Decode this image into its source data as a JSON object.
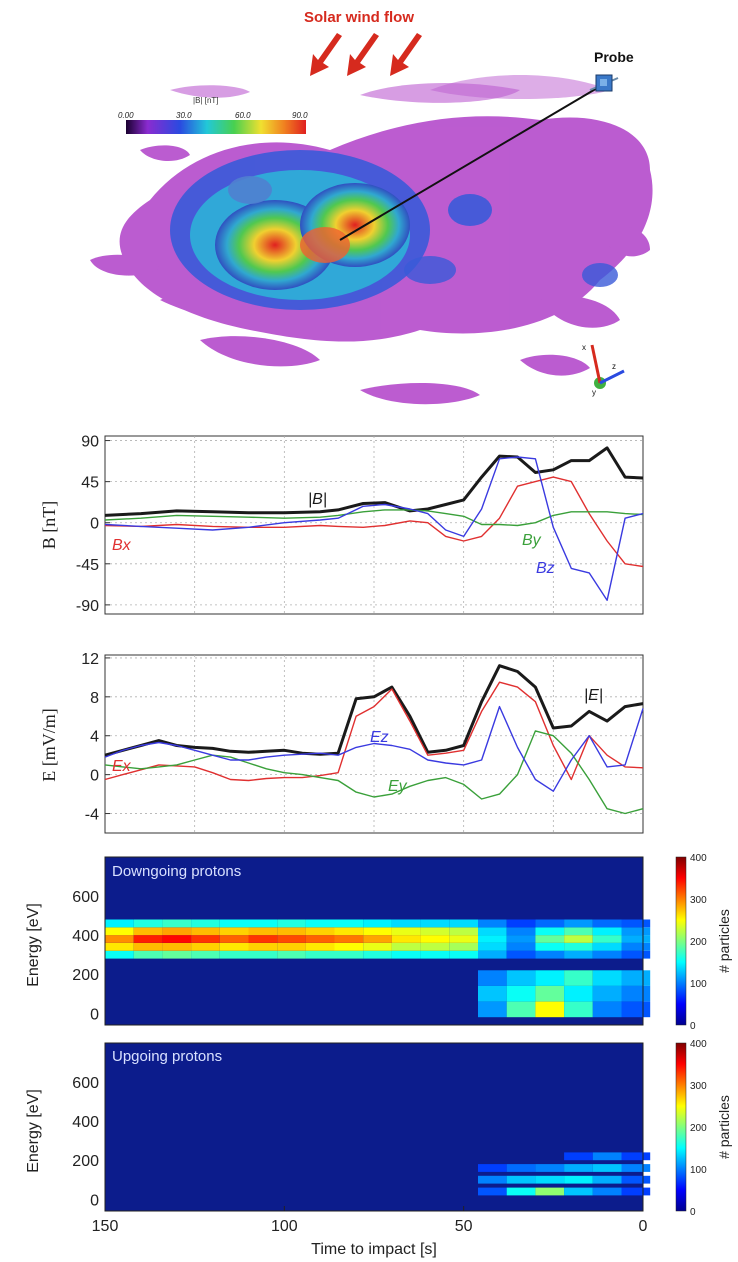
{
  "scene": {
    "solar_wind_label": "Solar wind flow",
    "probe_label": "Probe",
    "colorbar_title": "|B|  [nT]",
    "colorbar_ticks": [
      "0.00",
      "30.0",
      "60.0",
      "90.0"
    ],
    "axis_glyphs": [
      "x",
      "z",
      "y"
    ]
  },
  "chart_data": [
    {
      "type": "line",
      "ylabel": "B [nT]",
      "ylim": [
        -100,
        95
      ],
      "xlim": [
        150,
        0
      ],
      "yticks": [
        90,
        45,
        0,
        -45,
        -90
      ],
      "grid": true,
      "series": [
        {
          "name": "|B|",
          "color": "#1a1a1a",
          "x": [
            150,
            140,
            130,
            120,
            110,
            100,
            90,
            85,
            78,
            72,
            65,
            60,
            55,
            50,
            45,
            40,
            35,
            30,
            25,
            20,
            15,
            10,
            5,
            0
          ],
          "y": [
            8,
            10,
            13,
            12,
            11,
            11,
            12,
            14,
            21,
            22,
            13,
            15,
            20,
            25,
            50,
            73,
            72,
            55,
            58,
            68,
            68,
            82,
            50,
            49
          ]
        },
        {
          "name": "Bx",
          "color": "#e03030",
          "x": [
            150,
            140,
            130,
            120,
            110,
            100,
            90,
            85,
            78,
            72,
            65,
            60,
            55,
            50,
            45,
            40,
            35,
            30,
            25,
            20,
            15,
            10,
            5,
            0
          ],
          "y": [
            -3,
            -4,
            -2,
            -4,
            -5,
            -5,
            -3,
            -4,
            -5,
            -3,
            2,
            0,
            -15,
            -20,
            -15,
            5,
            40,
            45,
            50,
            45,
            10,
            -20,
            -45,
            -48
          ]
        },
        {
          "name": "By",
          "color": "#3aa03a",
          "x": [
            150,
            140,
            130,
            120,
            110,
            100,
            90,
            85,
            78,
            72,
            65,
            60,
            55,
            50,
            45,
            40,
            35,
            30,
            25,
            20,
            15,
            10,
            5,
            0
          ],
          "y": [
            3,
            5,
            8,
            7,
            6,
            5,
            6,
            8,
            12,
            14,
            14,
            13,
            10,
            7,
            -2,
            -2,
            -3,
            0,
            8,
            12,
            12,
            12,
            10,
            9
          ]
        },
        {
          "name": "Bz",
          "color": "#3a3ae0",
          "x": [
            150,
            140,
            130,
            120,
            110,
            100,
            90,
            85,
            78,
            72,
            65,
            60,
            55,
            50,
            45,
            40,
            35,
            30,
            25,
            20,
            15,
            10,
            5,
            0
          ],
          "y": [
            -2,
            -4,
            -6,
            -8,
            -5,
            0,
            3,
            5,
            18,
            20,
            15,
            10,
            -8,
            -15,
            15,
            70,
            72,
            70,
            -5,
            -50,
            -55,
            -85,
            5,
            10
          ]
        }
      ],
      "annotations": [
        "|B|",
        "Bx",
        "By",
        "Bz"
      ]
    },
    {
      "type": "line",
      "ylabel": "E [mV/m]",
      "ylim": [
        -6,
        12.3
      ],
      "xlim": [
        150,
        0
      ],
      "yticks": [
        12,
        8,
        4,
        0,
        -4
      ],
      "grid": true,
      "series": [
        {
          "name": "|E|",
          "color": "#1a1a1a",
          "x": [
            150,
            145,
            140,
            135,
            130,
            125,
            120,
            115,
            110,
            105,
            100,
            95,
            90,
            85,
            80,
            75,
            70,
            65,
            60,
            55,
            50,
            45,
            40,
            35,
            30,
            25,
            20,
            15,
            10,
            5,
            0
          ],
          "y": [
            2,
            2.5,
            3,
            3.5,
            3,
            2.8,
            2.7,
            2.4,
            2.3,
            2.4,
            2.5,
            2.2,
            2.1,
            2.2,
            7.8,
            8,
            9,
            6,
            2.3,
            2.5,
            3,
            7.5,
            11.2,
            10.6,
            9,
            4.8,
            5,
            6.5,
            5.5,
            7,
            7.3
          ]
        },
        {
          "name": "Ex",
          "color": "#e03030",
          "x": [
            150,
            145,
            140,
            135,
            130,
            125,
            120,
            115,
            110,
            105,
            100,
            95,
            90,
            85,
            80,
            75,
            70,
            65,
            60,
            55,
            50,
            45,
            40,
            35,
            30,
            25,
            20,
            15,
            10,
            5,
            0
          ],
          "y": [
            -0.5,
            0,
            0.5,
            1,
            0.9,
            0.8,
            0.2,
            -0.5,
            -0.6,
            -0.4,
            -0.3,
            -0.3,
            -0.1,
            0.2,
            6,
            7,
            8.8,
            5.5,
            2,
            2.2,
            2.5,
            6.5,
            9.5,
            9,
            7.5,
            3,
            -0.5,
            4,
            2,
            0.8,
            0.7
          ]
        },
        {
          "name": "Ey",
          "color": "#3aa03a",
          "x": [
            150,
            145,
            140,
            135,
            130,
            125,
            120,
            115,
            110,
            105,
            100,
            95,
            90,
            85,
            80,
            75,
            70,
            65,
            60,
            55,
            50,
            45,
            40,
            35,
            30,
            25,
            20,
            15,
            10,
            5,
            0
          ],
          "y": [
            1,
            0.8,
            0.6,
            0.8,
            1,
            1.5,
            2,
            1.8,
            1.2,
            0.6,
            0.2,
            0,
            -0.3,
            -0.6,
            -1.8,
            -2.3,
            -2,
            -1.2,
            -0.6,
            -0.3,
            -1,
            -2.5,
            -2,
            0,
            4.5,
            4,
            2.2,
            -0.5,
            -3.5,
            -4,
            -3.5
          ]
        },
        {
          "name": "Ez",
          "color": "#3a3ae0",
          "x": [
            150,
            145,
            140,
            135,
            130,
            125,
            120,
            115,
            110,
            105,
            100,
            95,
            90,
            85,
            80,
            75,
            70,
            65,
            60,
            55,
            50,
            45,
            40,
            35,
            30,
            25,
            20,
            15,
            10,
            5,
            0
          ],
          "y": [
            1.8,
            2.5,
            3,
            3.3,
            3,
            2.5,
            2,
            1.5,
            1.5,
            1.8,
            2,
            2.1,
            2.2,
            2,
            2.8,
            3.2,
            3,
            2.6,
            1.5,
            1.2,
            1,
            1.5,
            7,
            2.8,
            -0.5,
            -1.7,
            1.5,
            4,
            0.8,
            1,
            6.8
          ]
        }
      ],
      "annotations": [
        "|E|",
        "Ex",
        "Ey",
        "Ez"
      ]
    },
    {
      "type": "heatmap",
      "title": "Downgoing protons",
      "ylabel": "Energy [eV]",
      "yticks": [
        600,
        400,
        200,
        0
      ],
      "ylim": [
        -60,
        800
      ],
      "xlim": [
        150,
        0
      ],
      "colorbar_label": "# particles",
      "colorbar_ticks": [
        400,
        300,
        200,
        100,
        0
      ],
      "colorbar_range": [
        0,
        400
      ],
      "bins_x": [
        150,
        142,
        134,
        126,
        118,
        110,
        102,
        94,
        86,
        78,
        70,
        62,
        54,
        46,
        38,
        30,
        22,
        14,
        6
      ],
      "bins_e": [
        300,
        340,
        380,
        420,
        460
      ],
      "band_counts_note": "",
      "values": [
        [
          120,
          150,
          160,
          150,
          140,
          140,
          150,
          140,
          140,
          130,
          120,
          120,
          120,
          80,
          40,
          60,
          80,
          60,
          40
        ],
        [
          240,
          260,
          260,
          250,
          240,
          250,
          250,
          240,
          230,
          220,
          200,
          200,
          190,
          100,
          60,
          120,
          130,
          100,
          60
        ],
        [
          280,
          330,
          340,
          320,
          300,
          320,
          310,
          300,
          290,
          270,
          240,
          230,
          220,
          110,
          70,
          160,
          200,
          140,
          80
        ],
        [
          230,
          260,
          270,
          260,
          250,
          260,
          260,
          250,
          240,
          230,
          220,
          210,
          200,
          100,
          60,
          120,
          150,
          110,
          70
        ],
        [
          110,
          130,
          140,
          130,
          120,
          120,
          130,
          120,
          120,
          110,
          100,
          100,
          100,
          60,
          30,
          50,
          70,
          50,
          40
        ]
      ],
      "low_values": [
        [
          0,
          0,
          0,
          0,
          0,
          0,
          0,
          0,
          0,
          0,
          0,
          0,
          0,
          60,
          90,
          110,
          140,
          100,
          80
        ],
        [
          0,
          0,
          0,
          0,
          0,
          0,
          0,
          0,
          0,
          0,
          0,
          0,
          0,
          90,
          120,
          160,
          110,
          80,
          60
        ],
        [
          0,
          0,
          0,
          0,
          0,
          0,
          0,
          0,
          0,
          0,
          0,
          0,
          0,
          70,
          150,
          230,
          140,
          60,
          40
        ]
      ],
      "low_bins_e": [
        180,
        100,
        20
      ]
    },
    {
      "type": "heatmap",
      "title": "Upgoing protons",
      "ylabel": "Energy [eV]",
      "yticks": [
        600,
        400,
        200,
        0
      ],
      "ylim": [
        -60,
        800
      ],
      "xlim": [
        150,
        0
      ],
      "xticks": [
        150,
        100,
        50,
        0
      ],
      "xlabel": "Time to impact [s]",
      "colorbar_label": "# particles",
      "colorbar_ticks": [
        400,
        300,
        200,
        100,
        0
      ],
      "colorbar_range": [
        0,
        400
      ],
      "bins_x": [
        46,
        38,
        30,
        22,
        14,
        6
      ],
      "bins_e": [
        220,
        160,
        100,
        40
      ],
      "values": [
        [
          0,
          0,
          0,
          30,
          60,
          30
        ],
        [
          30,
          50,
          60,
          80,
          90,
          60
        ],
        [
          60,
          90,
          100,
          110,
          80,
          40
        ],
        [
          40,
          120,
          180,
          90,
          60,
          30
        ]
      ]
    }
  ]
}
